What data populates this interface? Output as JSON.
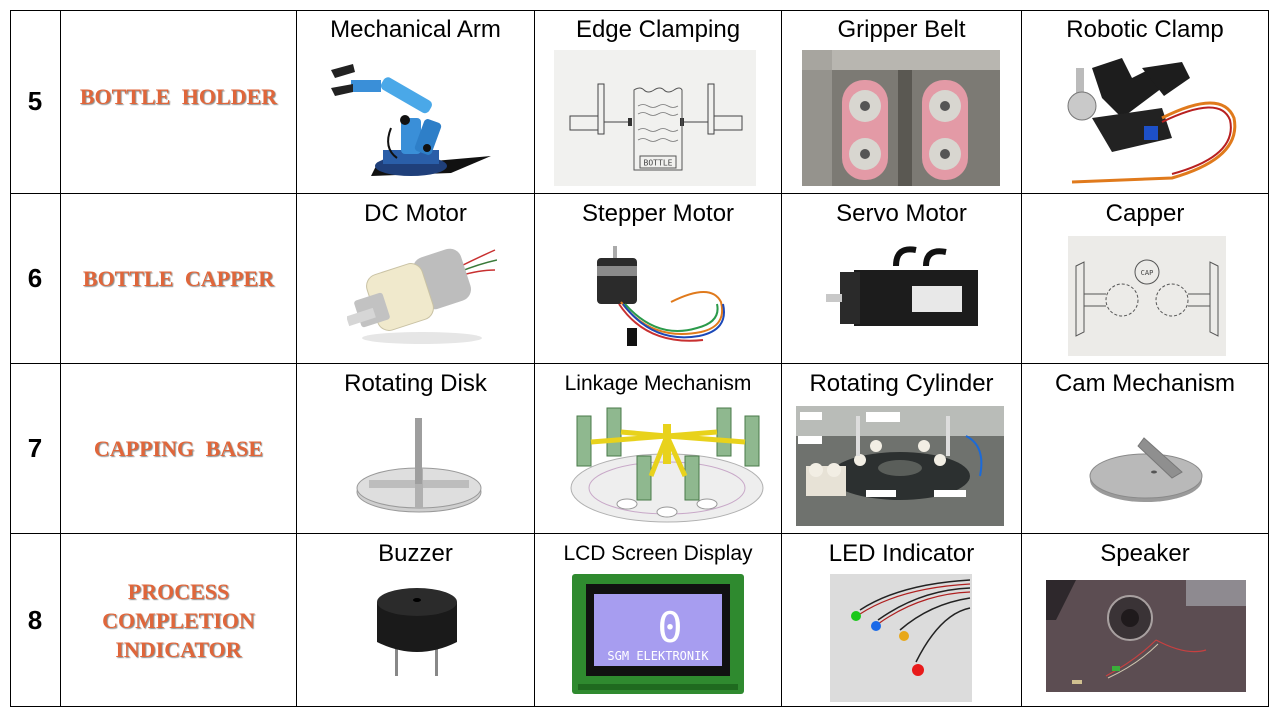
{
  "rows": [
    {
      "number": "5",
      "category": "BOTTLE HOLDER",
      "options": [
        {
          "title": "Mechanical Arm",
          "icon": "mechanical-arm-image"
        },
        {
          "title": "Edge Clamping",
          "icon": "edge-clamping-sketch",
          "sketch_label": "BOTTLE"
        },
        {
          "title": "Gripper Belt",
          "icon": "gripper-belt-image"
        },
        {
          "title": "Robotic Clamp",
          "icon": "robotic-clamp-image"
        }
      ]
    },
    {
      "number": "6",
      "category": "BOTTLE CAPPER",
      "options": [
        {
          "title": "DC Motor",
          "icon": "dc-motor-image"
        },
        {
          "title": "Stepper Motor",
          "icon": "stepper-motor-image"
        },
        {
          "title": "Servo Motor",
          "icon": "servo-motor-image"
        },
        {
          "title": "Capper",
          "icon": "capper-sketch",
          "sketch_label": "CAP"
        }
      ]
    },
    {
      "number": "7",
      "category": "CAPPING BASE",
      "options": [
        {
          "title": "Rotating Disk",
          "icon": "rotating-disk-image"
        },
        {
          "title": "Linkage Mechanism",
          "icon": "linkage-mechanism-image"
        },
        {
          "title": "Rotating Cylinder",
          "icon": "rotating-cylinder-image"
        },
        {
          "title": "Cam Mechanism",
          "icon": "cam-mechanism-image"
        }
      ]
    },
    {
      "number": "8",
      "category_lines": [
        "PROCESS",
        "COMPLETION",
        "INDICATOR"
      ],
      "options": [
        {
          "title": "Buzzer",
          "icon": "buzzer-image"
        },
        {
          "title": "LCD Screen Display",
          "icon": "lcd-screen-image",
          "lcd_big": "0",
          "lcd_text": "SGM ELEKTRONIK"
        },
        {
          "title": "LED Indicator",
          "icon": "led-indicator-image"
        },
        {
          "title": "Speaker",
          "icon": "speaker-image"
        }
      ]
    }
  ],
  "colors": {
    "category": "#e0663a",
    "border": "#000000",
    "background": "#ffffff"
  }
}
